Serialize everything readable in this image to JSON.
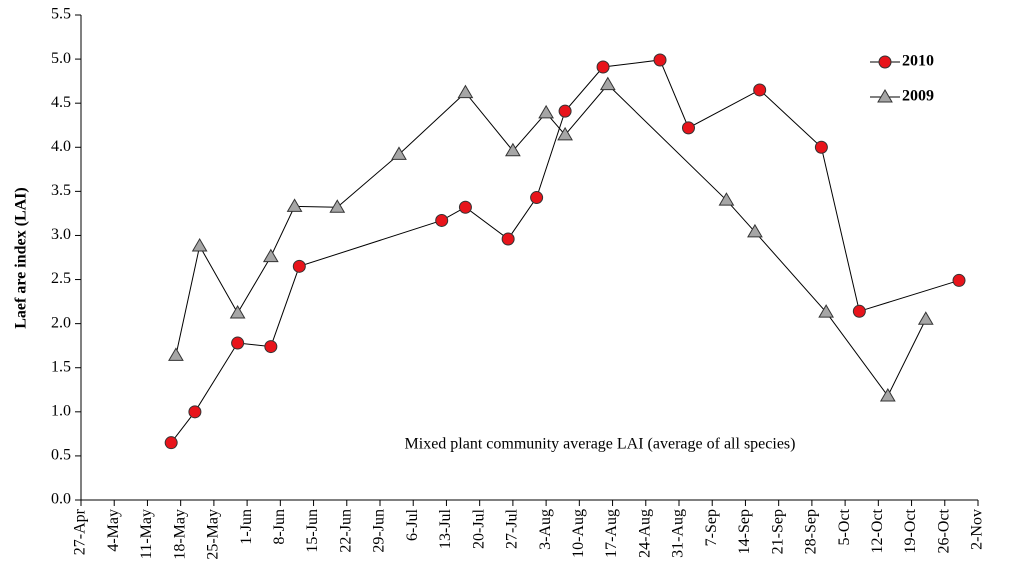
{
  "chart_data": {
    "type": "line",
    "y_label": "Laef are index (LAI)",
    "annotation": "Mixed plant community average LAI (average of all species)",
    "xlim": [
      117,
      306
    ],
    "xticks": [
      {
        "value": 117,
        "label": "27-Apr"
      },
      {
        "value": 124,
        "label": "4-May"
      },
      {
        "value": 131,
        "label": "11-May"
      },
      {
        "value": 138,
        "label": "18-May"
      },
      {
        "value": 145,
        "label": "25-May"
      },
      {
        "value": 152,
        "label": "1-Jun"
      },
      {
        "value": 159,
        "label": "8-Jun"
      },
      {
        "value": 166,
        "label": "15-Jun"
      },
      {
        "value": 173,
        "label": "22-Jun"
      },
      {
        "value": 180,
        "label": "29-Jun"
      },
      {
        "value": 187,
        "label": "6-Jul"
      },
      {
        "value": 194,
        "label": "13-Jul"
      },
      {
        "value": 201,
        "label": "20-Jul"
      },
      {
        "value": 208,
        "label": "27-Jul"
      },
      {
        "value": 215,
        "label": "3-Aug"
      },
      {
        "value": 222,
        "label": "10-Aug"
      },
      {
        "value": 229,
        "label": "17-Aug"
      },
      {
        "value": 236,
        "label": "24-Aug"
      },
      {
        "value": 243,
        "label": "31-Aug"
      },
      {
        "value": 250,
        "label": "7-Sep"
      },
      {
        "value": 257,
        "label": "14-Sep"
      },
      {
        "value": 264,
        "label": "21-Sep"
      },
      {
        "value": 271,
        "label": "28-Sep"
      },
      {
        "value": 278,
        "label": "5-Oct"
      },
      {
        "value": 285,
        "label": "12-Oct"
      },
      {
        "value": 292,
        "label": "19-Oct"
      },
      {
        "value": 299,
        "label": "26-Oct"
      },
      {
        "value": 306,
        "label": "2-Nov"
      }
    ],
    "ylim": [
      0,
      5.5
    ],
    "yticks": [
      {
        "value": 0,
        "label": "0.0"
      },
      0.5,
      {
        "value": 1,
        "label": "1.0"
      },
      1.5,
      {
        "value": 2,
        "label": "2.0"
      },
      2.5,
      {
        "value": 3,
        "label": "3.0"
      },
      3.5,
      {
        "value": 4,
        "label": "4.0"
      },
      4.5,
      {
        "value": 5,
        "label": "5.0"
      },
      5.5
    ],
    "legend": "upper right",
    "series": [
      {
        "name": "2010",
        "color": "#e8141b",
        "marker": "circle",
        "x": [
          136,
          141,
          150,
          157,
          163,
          193,
          198,
          207,
          213,
          219,
          227,
          239,
          245,
          260,
          273,
          281,
          302
        ],
        "values": [
          0.65,
          1.0,
          1.78,
          1.74,
          2.65,
          3.17,
          3.32,
          2.96,
          3.43,
          4.41,
          4.91,
          4.99,
          4.22,
          4.65,
          4.0,
          2.14,
          2.49
        ]
      },
      {
        "name": "2009",
        "color": "#a6a6a6",
        "marker": "triangle",
        "x": [
          137,
          142,
          150,
          157,
          162,
          171,
          184,
          198,
          208,
          215,
          219,
          228,
          253,
          259,
          274,
          287,
          295
        ],
        "values": [
          1.64,
          2.88,
          2.12,
          2.76,
          3.33,
          3.32,
          3.92,
          4.62,
          3.96,
          4.39,
          4.14,
          4.71,
          3.4,
          3.04,
          2.13,
          1.18,
          2.05
        ]
      }
    ]
  }
}
